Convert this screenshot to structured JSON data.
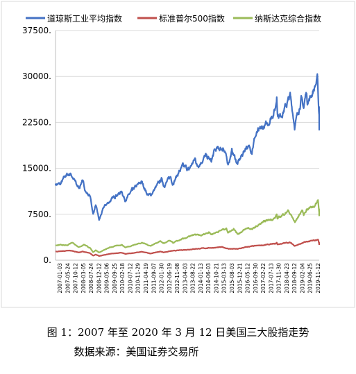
{
  "chart_data": {
    "type": "line",
    "title": "",
    "xlabel": "",
    "ylabel": "",
    "ylim": [
      0,
      37500
    ],
    "yticks": [
      0,
      7500,
      15000,
      22500,
      30000,
      37500
    ],
    "ytick_labels": [
      "0.",
      "7500.",
      "15000.",
      "22500.",
      "30000.",
      "37500."
    ],
    "grid": "horizontal",
    "legend_position": "top",
    "xtick_labels": [
      "2007-01-03",
      "2007-05-24",
      "2007-10-12",
      "2008-03-05",
      "2008-07-24",
      "2008-12-12",
      "2009-05-06",
      "2009-09-25",
      "2010-02-18",
      "2010-07-12",
      "2010-11-29",
      "2011-04-19",
      "2011-09-07",
      "2012-01-30",
      "2012-06-19",
      "2012-11-08",
      "2013-04-03",
      "2013-08-22",
      "2014-01-13",
      "2014-06-03",
      "2014-10-21",
      "2015-03-13",
      "2015-08-03",
      "2015-12-21",
      "2016-05-12",
      "2016-09-30",
      "2017-02-22",
      "2017-07-13",
      "2017-11-30",
      "2018-04-23",
      "2018-09-12",
      "2019-02-04",
      "2019-06-25",
      "2019-11-12"
    ],
    "series": [
      {
        "name": "道琼斯工业平均指数",
        "color": "#4472C4",
        "points": [
          [
            "2007-01-03",
            12470
          ],
          [
            "2007-04-02",
            12350
          ],
          [
            "2007-07-16",
            13900
          ],
          [
            "2007-10-09",
            14100
          ],
          [
            "2008-01-15",
            12500
          ],
          [
            "2008-03-10",
            11750
          ],
          [
            "2008-05-02",
            13050
          ],
          [
            "2008-07-15",
            11100
          ],
          [
            "2008-09-29",
            10400
          ],
          [
            "2008-11-20",
            7550
          ],
          [
            "2009-01-05",
            9000
          ],
          [
            "2009-03-09",
            6550
          ],
          [
            "2009-06-12",
            8800
          ],
          [
            "2009-09-30",
            9700
          ],
          [
            "2009-12-31",
            10430
          ],
          [
            "2010-04-26",
            11200
          ],
          [
            "2010-07-02",
            9690
          ],
          [
            "2010-11-05",
            11440
          ],
          [
            "2011-04-29",
            12810
          ],
          [
            "2011-08-10",
            10720
          ],
          [
            "2011-10-03",
            10650
          ],
          [
            "2012-05-01",
            13280
          ],
          [
            "2012-06-04",
            12100
          ],
          [
            "2012-10-05",
            13610
          ],
          [
            "2012-11-15",
            12540
          ],
          [
            "2013-03-15",
            14540
          ],
          [
            "2013-05-28",
            15400
          ],
          [
            "2013-08-30",
            14810
          ],
          [
            "2013-12-31",
            16580
          ],
          [
            "2014-02-03",
            15370
          ],
          [
            "2014-07-16",
            17140
          ],
          [
            "2014-10-15",
            16140
          ],
          [
            "2014-12-26",
            18050
          ],
          [
            "2015-05-19",
            18310
          ],
          [
            "2015-08-25",
            15670
          ],
          [
            "2015-11-03",
            17900
          ],
          [
            "2016-02-11",
            15660
          ],
          [
            "2016-07-20",
            18600
          ],
          [
            "2016-11-04",
            17890
          ],
          [
            "2016-12-20",
            19970
          ],
          [
            "2017-03-01",
            21120
          ],
          [
            "2017-08-07",
            22120
          ],
          [
            "2017-12-29",
            24720
          ],
          [
            "2018-01-26",
            26620
          ],
          [
            "2018-02-08",
            23860
          ],
          [
            "2018-03-23",
            23530
          ],
          [
            "2018-07-31",
            25420
          ],
          [
            "2018-10-03",
            26830
          ],
          [
            "2018-12-24",
            21790
          ],
          [
            "2019-04-23",
            26650
          ],
          [
            "2019-06-03",
            24820
          ],
          [
            "2019-07-16",
            27360
          ],
          [
            "2019-08-14",
            25480
          ],
          [
            "2019-12-31",
            28540
          ],
          [
            "2020-02-12",
            29550
          ],
          [
            "2020-02-28",
            25400
          ],
          [
            "2020-03-09",
            23850
          ],
          [
            "2020-03-10",
            25020
          ],
          [
            "2020-03-12",
            21200
          ]
        ]
      },
      {
        "name": "标准普尔500指数",
        "color": "#C0504D",
        "points": [
          [
            "2007-01-03",
            1410
          ],
          [
            "2007-10-09",
            1565
          ],
          [
            "2008-03-10",
            1270
          ],
          [
            "2008-05-19",
            1425
          ],
          [
            "2008-09-29",
            1105
          ],
          [
            "2008-11-20",
            750
          ],
          [
            "2009-01-05",
            930
          ],
          [
            "2009-03-09",
            680
          ],
          [
            "2009-09-30",
            1060
          ],
          [
            "2010-04-23",
            1215
          ],
          [
            "2010-07-02",
            1020
          ],
          [
            "2011-04-29",
            1365
          ],
          [
            "2011-10-03",
            1100
          ],
          [
            "2012-04-02",
            1420
          ],
          [
            "2012-06-04",
            1280
          ],
          [
            "2012-09-14",
            1465
          ],
          [
            "2013-05-21",
            1670
          ],
          [
            "2013-12-31",
            1850
          ],
          [
            "2014-09-18",
            2010
          ],
          [
            "2015-05-21",
            2130
          ],
          [
            "2015-08-25",
            1870
          ],
          [
            "2016-02-11",
            1830
          ],
          [
            "2016-08-15",
            2190
          ],
          [
            "2017-12-29",
            2675
          ],
          [
            "2018-01-26",
            2875
          ],
          [
            "2018-02-08",
            2580
          ],
          [
            "2018-09-20",
            2930
          ],
          [
            "2018-12-24",
            2350
          ],
          [
            "2019-07-26",
            3025
          ],
          [
            "2019-12-31",
            3230
          ],
          [
            "2020-02-19",
            3390
          ],
          [
            "2020-03-09",
            2750
          ],
          [
            "2020-03-10",
            2880
          ],
          [
            "2020-03-12",
            2480
          ]
        ]
      },
      {
        "name": "纳斯达克综合指数",
        "color": "#9BBB59",
        "points": [
          [
            "2007-01-03",
            2420
          ],
          [
            "2007-02-26",
            2500
          ],
          [
            "2007-08-16",
            2450
          ],
          [
            "2007-10-31",
            2860
          ],
          [
            "2008-03-10",
            2170
          ],
          [
            "2008-06-05",
            2550
          ],
          [
            "2008-09-29",
            1980
          ],
          [
            "2008-11-20",
            1320
          ],
          [
            "2009-01-05",
            1630
          ],
          [
            "2009-03-09",
            1270
          ],
          [
            "2009-09-30",
            2120
          ],
          [
            "2010-04-26",
            2530
          ],
          [
            "2010-07-02",
            2090
          ],
          [
            "2011-04-29",
            2870
          ],
          [
            "2011-10-03",
            2340
          ],
          [
            "2012-03-26",
            3120
          ],
          [
            "2012-06-04",
            2760
          ],
          [
            "2012-09-19",
            3180
          ],
          [
            "2012-11-15",
            2840
          ],
          [
            "2013-05-21",
            3500
          ],
          [
            "2013-12-31",
            4180
          ],
          [
            "2014-04-11",
            4000
          ],
          [
            "2014-09-03",
            4590
          ],
          [
            "2014-10-15",
            4220
          ],
          [
            "2015-07-20",
            5220
          ],
          [
            "2015-08-25",
            4510
          ],
          [
            "2015-12-01",
            5160
          ],
          [
            "2016-02-11",
            4270
          ],
          [
            "2016-08-15",
            5260
          ],
          [
            "2016-11-04",
            5050
          ],
          [
            "2017-06-08",
            6320
          ],
          [
            "2017-12-29",
            6900
          ],
          [
            "2018-01-26",
            7500
          ],
          [
            "2018-02-08",
            6770
          ],
          [
            "2018-08-29",
            8110
          ],
          [
            "2018-12-24",
            6190
          ],
          [
            "2019-05-03",
            8160
          ],
          [
            "2019-06-03",
            7330
          ],
          [
            "2019-07-26",
            8330
          ],
          [
            "2019-12-31",
            8970
          ],
          [
            "2020-02-19",
            9820
          ],
          [
            "2020-03-09",
            7950
          ],
          [
            "2020-03-10",
            8340
          ],
          [
            "2020-03-12",
            7200
          ]
        ]
      }
    ]
  },
  "caption": {
    "title": "图 1：2007 年至 2020 年 3 月 12 日美国三大股指走势",
    "source": "数据来源：美国证券交易所"
  }
}
